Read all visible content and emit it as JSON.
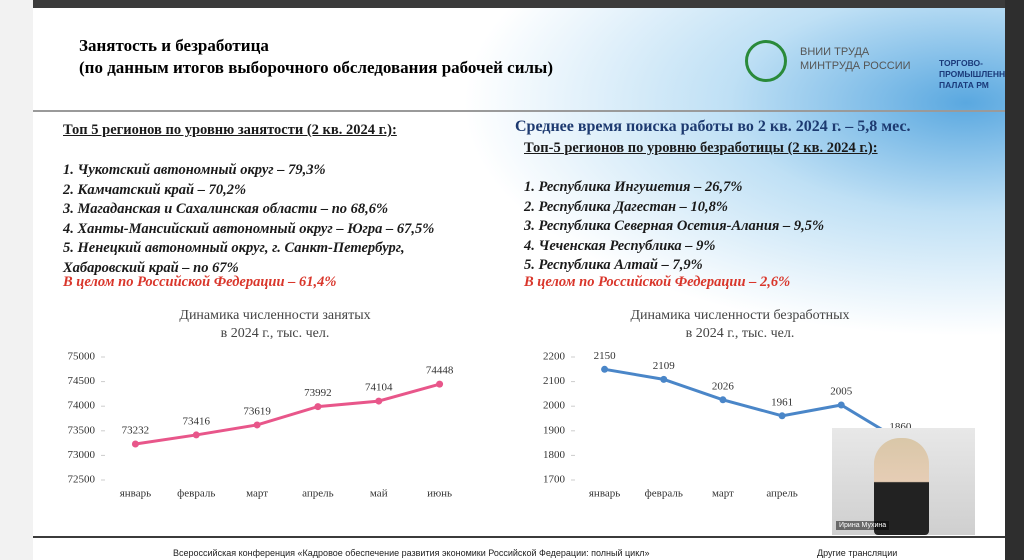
{
  "slide": {
    "title": "Занятость и безработица",
    "subtitle": "(по данным итогов выборочного обследования рабочей силы)",
    "logo_left": [
      "ВНИИ ТРУДА",
      "МИНТРУДА РОССИИ"
    ],
    "logo_right": [
      "ТОРГОВО-",
      "ПРОМЫШЛЕННАЯ",
      "ПАЛАТА РМ"
    ],
    "left": {
      "heading": "Топ 5 регионов по уровню занятости (2 кв. 2024 г.):",
      "items": [
        "1. Чукотский автономный округ – 79,3%",
        "2. Камчатский край – 70,2%",
        "3. Магаданская и Сахалинская области – по 68,6%",
        "4. Ханты-Мансийский автономный округ – Югра – 67,5%",
        "5. Ненецкий автономный округ, г. Санкт-Петербург,",
        "Хабаровский край – по 67%"
      ],
      "total": "В целом по Российской Федерации – 61,4%"
    },
    "right": {
      "headline": "Среднее время поиска работы во 2 кв. 2024 г. – 5,8 мес.",
      "heading": "Топ-5 регионов по уровню безработицы (2 кв. 2024 г.):",
      "items": [
        "1. Республика Ингушетия – 26,7%",
        "2. Республика Дагестан – 10,8%",
        "3. Республика Северная Осетия-Алания – 9,5%",
        "4. Чеченская Республика – 9%",
        "5. Республика Алтай – 7,9%"
      ],
      "total": "В целом по Российской Федерации – 2,6%"
    }
  },
  "chart_data": [
    {
      "type": "line",
      "title": [
        "Динамика численности занятых",
        "в 2024 г., тыс. чел."
      ],
      "categories": [
        "январь",
        "февраль",
        "март",
        "апрель",
        "май",
        "июнь"
      ],
      "values": [
        73232,
        73416,
        73619,
        73992,
        74104,
        74448
      ],
      "color": "#e8568a",
      "ylim": [
        72500,
        75000
      ],
      "yticks": [
        72500,
        73000,
        73500,
        74000,
        74500,
        75000
      ]
    },
    {
      "type": "line",
      "title": [
        "Динамика численности безработных",
        "в 2024 г., тыс. чел."
      ],
      "categories": [
        "январь",
        "февраль",
        "март",
        "апрель",
        null,
        null
      ],
      "values": [
        2150,
        2109,
        2026,
        1961,
        2005,
        1860
      ],
      "color": "#4a86c8",
      "ylim": [
        1700,
        2200
      ],
      "yticks": [
        1700,
        1800,
        1900,
        2000,
        2100,
        2200
      ]
    }
  ],
  "video": {
    "speaker": "Ирина Мухина"
  },
  "footer": {
    "event": "Всероссийская конференция «Кадровое обеспечение развития экономики Российской Федерации: полный цикл»",
    "other": "Другие трансляции"
  }
}
